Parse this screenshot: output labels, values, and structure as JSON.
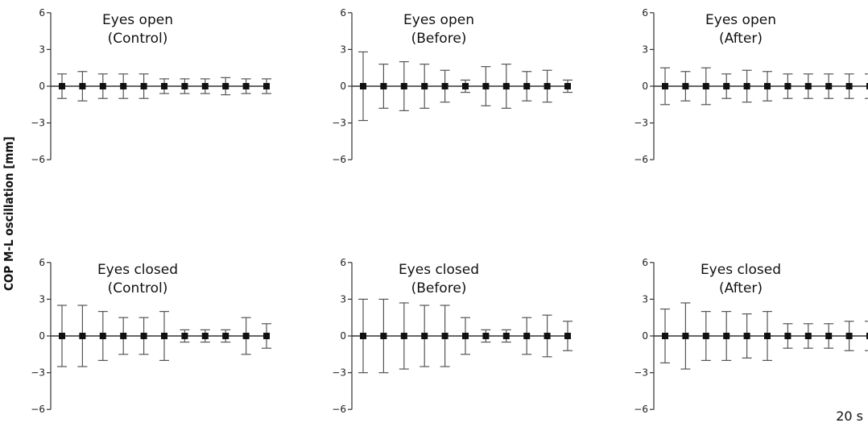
{
  "figure": {
    "ylabel": "COP M-L oscillation [mm]",
    "duration_label": "20 s"
  },
  "chart_data": [
    {
      "type": "errorbar",
      "title": [
        "Eyes open",
        "(Control)"
      ],
      "yticks": [
        6,
        3,
        0,
        -3,
        -6
      ],
      "ylim": [
        -6,
        6
      ],
      "means": [
        0,
        0,
        0,
        0,
        0,
        0,
        0,
        0,
        0,
        0,
        0
      ],
      "errors": [
        1.0,
        1.2,
        1.0,
        1.0,
        1.0,
        0.6,
        0.6,
        0.6,
        0.7,
        0.6,
        0.6
      ]
    },
    {
      "type": "errorbar",
      "title": [
        "Eyes open",
        "(Before)"
      ],
      "yticks": [
        6,
        3,
        0,
        -3,
        -6
      ],
      "ylim": [
        -6,
        6
      ],
      "means": [
        0,
        0,
        0,
        0,
        0,
        0,
        0,
        0,
        0,
        0,
        0
      ],
      "errors": [
        2.8,
        1.8,
        2.0,
        1.8,
        1.3,
        0.5,
        1.6,
        1.8,
        1.2,
        1.3,
        0.5
      ]
    },
    {
      "type": "errorbar",
      "title": [
        "Eyes open",
        "(After)"
      ],
      "yticks": [
        6,
        3,
        0,
        -3,
        -6
      ],
      "ylim": [
        -6,
        6
      ],
      "means": [
        0,
        0,
        0,
        0,
        0,
        0,
        0,
        0,
        0,
        0,
        0
      ],
      "errors": [
        1.5,
        1.2,
        1.5,
        1.0,
        1.3,
        1.2,
        1.0,
        1.0,
        1.0,
        1.0,
        1.0
      ]
    },
    {
      "type": "errorbar",
      "title": [
        "Eyes closed",
        "(Control)"
      ],
      "yticks": [
        6,
        3,
        0,
        -3,
        -6
      ],
      "ylim": [
        -6,
        6
      ],
      "means": [
        0,
        0,
        0,
        0,
        0,
        0,
        0,
        0,
        0,
        0,
        0
      ],
      "errors": [
        2.5,
        2.5,
        2.0,
        1.5,
        1.5,
        2.0,
        0.5,
        0.5,
        0.5,
        1.5,
        1.0
      ]
    },
    {
      "type": "errorbar",
      "title": [
        "Eyes closed",
        "(Before)"
      ],
      "yticks": [
        6,
        3,
        0,
        -3,
        -6
      ],
      "ylim": [
        -6,
        6
      ],
      "means": [
        0,
        0,
        0,
        0,
        0,
        0,
        0,
        0,
        0,
        0,
        0
      ],
      "errors": [
        3.0,
        3.0,
        2.7,
        2.5,
        2.5,
        1.5,
        0.5,
        0.5,
        1.5,
        1.7,
        1.2
      ]
    },
    {
      "type": "errorbar",
      "title": [
        "Eyes closed",
        "(After)"
      ],
      "yticks": [
        6,
        3,
        0,
        -3,
        -6
      ],
      "ylim": [
        -6,
        6
      ],
      "means": [
        0,
        0,
        0,
        0,
        0,
        0,
        0,
        0,
        0,
        0,
        0
      ],
      "errors": [
        2.2,
        2.7,
        2.0,
        2.0,
        1.8,
        2.0,
        1.0,
        1.0,
        1.0,
        1.2,
        1.2
      ]
    }
  ]
}
